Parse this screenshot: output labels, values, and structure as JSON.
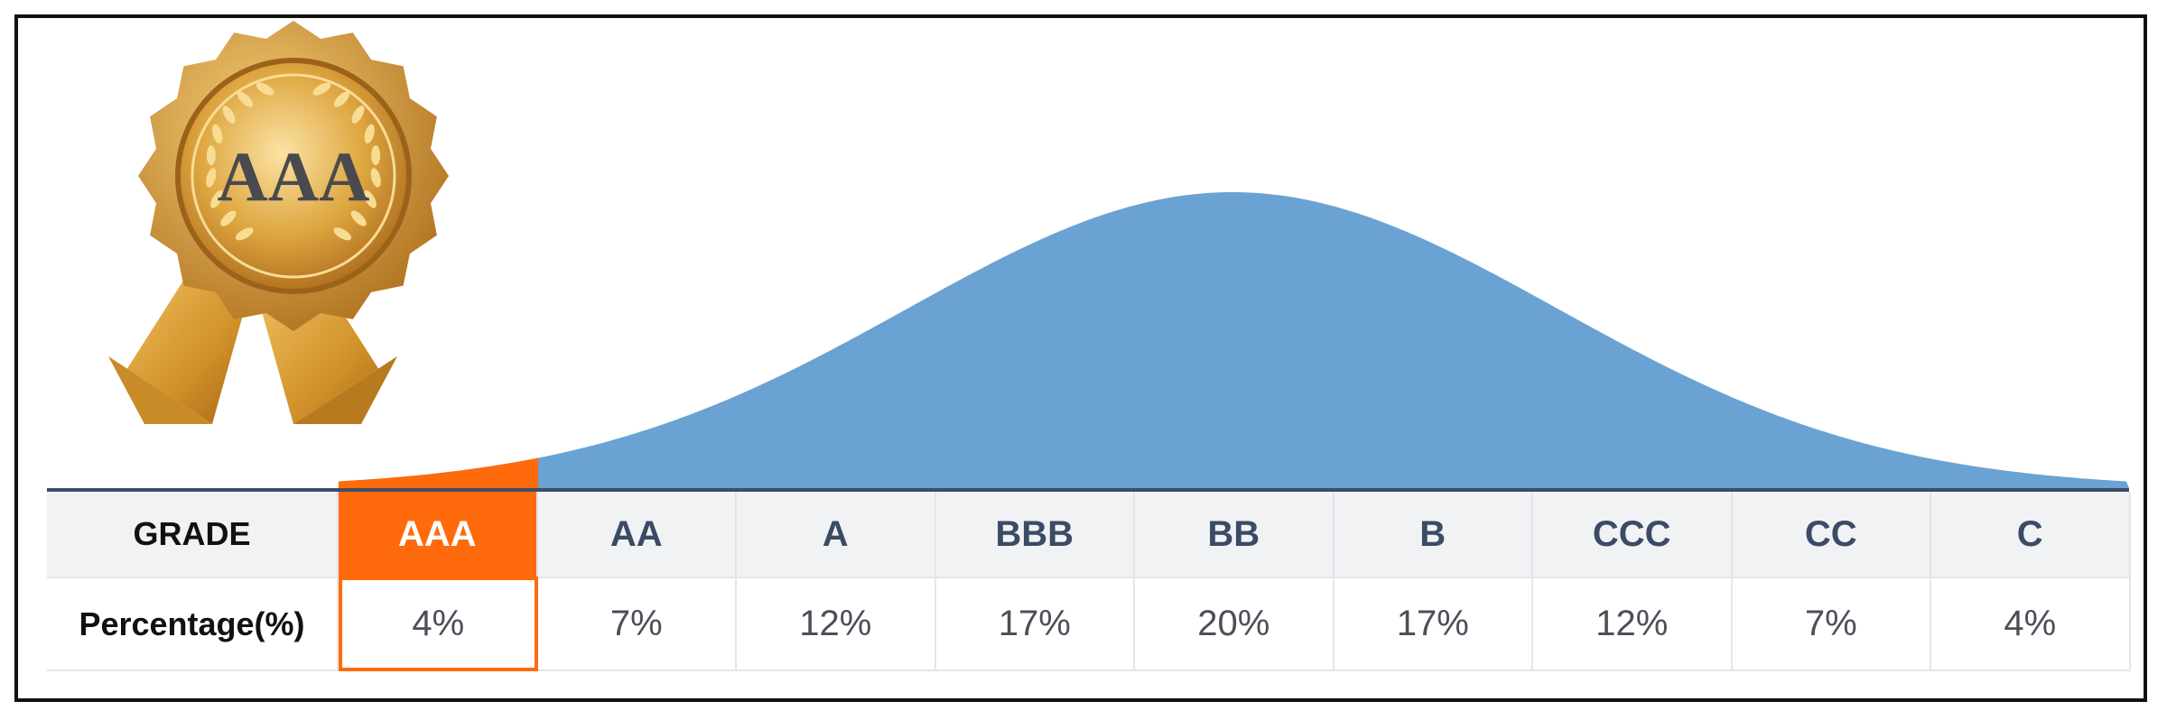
{
  "chart_data": {
    "type": "area",
    "categories": [
      "AAA",
      "AA",
      "A",
      "BBB",
      "BB",
      "B",
      "CCC",
      "CC",
      "C"
    ],
    "values": [
      4,
      7,
      12,
      17,
      20,
      17,
      12,
      7,
      4
    ],
    "value_labels": [
      "4%",
      "7%",
      "12%",
      "17%",
      "20%",
      "17%",
      "12%",
      "7%",
      "4%"
    ],
    "highlight": "AAA",
    "title": "",
    "xlabel": "",
    "ylabel": ""
  },
  "table": {
    "row1_label": "GRADE",
    "row2_label": "Percentage(%)"
  },
  "medal": {
    "text": "AAA"
  },
  "colors": {
    "curve": "#6aa2d3",
    "highlight": "#ff6a0c",
    "baseline": "#3e4c66",
    "gold": "#d59a2a"
  }
}
